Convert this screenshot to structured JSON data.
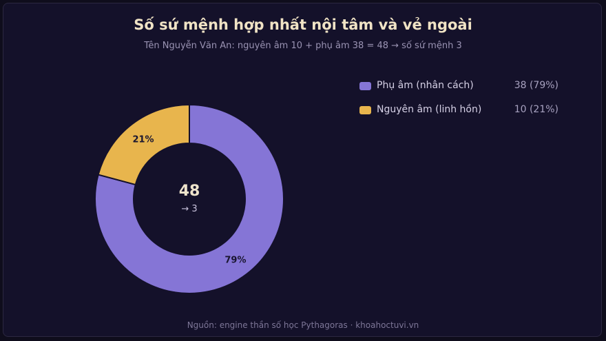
{
  "title": "Số sứ mệnh hợp nhất nội tâm và vẻ ngoài",
  "subtitle": "Tên Nguyễn Văn An: nguyên âm 10 + phụ âm 38 = 48 → số sứ mệnh 3",
  "footer": "Nguồn: engine thần số học Pythagoras · khoahoctuvi.vn",
  "center": {
    "total": "48",
    "result": "→ 3"
  },
  "legend": [
    {
      "label": "Phụ âm (nhân cách)",
      "value": "38 (79%)"
    },
    {
      "label": "Nguyên âm (linh hồn)",
      "value": "10 (21%)"
    }
  ],
  "chart_data": {
    "type": "pie",
    "donut": true,
    "start": "12 o'clock, clockwise",
    "slices": [
      {
        "name": "Phụ âm (nhân cách)",
        "value": 38,
        "percent_label": "79%",
        "color": "#8575d6"
      },
      {
        "name": "Nguyên âm (linh hồn)",
        "value": 10,
        "percent_label": "21%",
        "color": "#e8b54d"
      }
    ],
    "total": 48,
    "legend_position": "top-right"
  },
  "colors": {
    "background": "#14112a",
    "title": "#f0e3c5",
    "slice_border": "#14112a"
  }
}
